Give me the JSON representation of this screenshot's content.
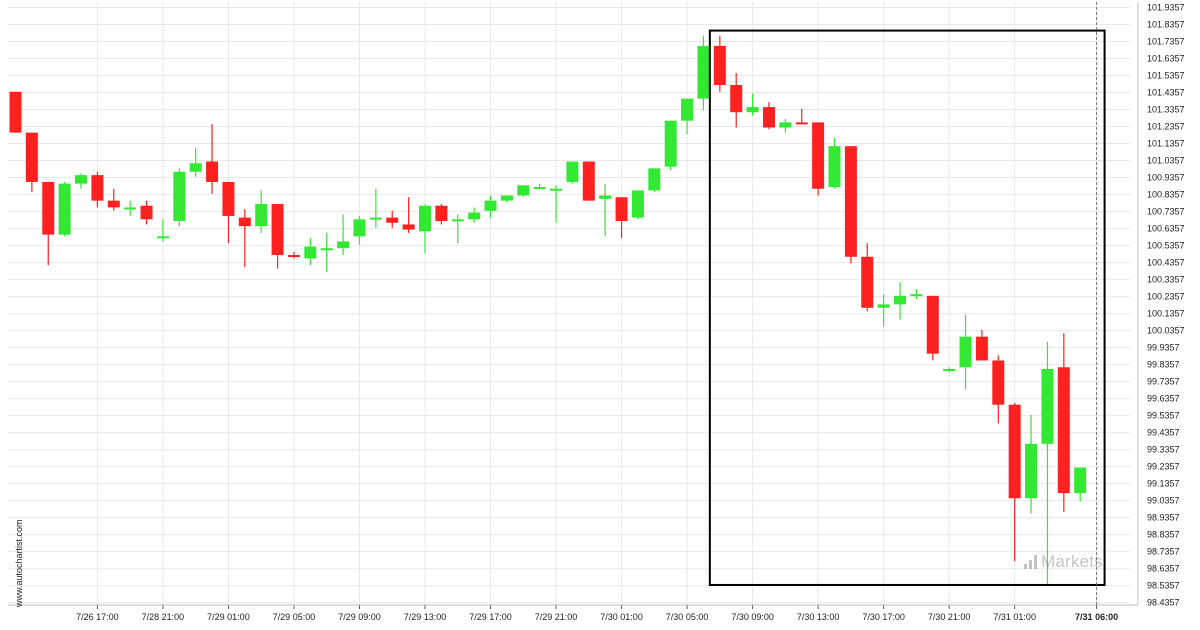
{
  "watermark": {
    "text": "www.autochartist.com"
  },
  "brand": {
    "text": "Markets",
    "icon": "bar-chart-icon"
  },
  "colors": {
    "up": "#33e833",
    "down": "#ff2020",
    "grid": "#e8e8e8",
    "axis": "#222222",
    "box": "#000000"
  },
  "chart_data": {
    "type": "candlestick",
    "title": "",
    "xlabel": "",
    "ylabel": "",
    "ylim": [
      98.41,
      101.96
    ],
    "grid": true,
    "y_ticks": [
      "101.9357",
      "101.8357",
      "101.7357",
      "101.6357",
      "101.5357",
      "101.4357",
      "101.3357",
      "101.2357",
      "101.1357",
      "101.0357",
      "100.9357",
      "100.8357",
      "100.7357",
      "100.6357",
      "100.5357",
      "100.4357",
      "100.3357",
      "100.2357",
      "100.1357",
      "100.0357",
      "99.9357",
      "99.8357",
      "99.7357",
      "99.6357",
      "99.5357",
      "99.4357",
      "99.3357",
      "99.2357",
      "99.1357",
      "99.0357",
      "98.9357",
      "98.8357",
      "98.7357",
      "98.6357",
      "98.5357",
      "98.4357"
    ],
    "x_ticks": [
      {
        "label": "7/26 17:00",
        "index": 5,
        "bold": false
      },
      {
        "label": "7/28 21:00",
        "index": 9,
        "bold": false
      },
      {
        "label": "7/29 01:00",
        "index": 13,
        "bold": false
      },
      {
        "label": "7/29 05:00",
        "index": 17,
        "bold": false
      },
      {
        "label": "7/29 09:00",
        "index": 21,
        "bold": false
      },
      {
        "label": "7/29 13:00",
        "index": 25,
        "bold": false
      },
      {
        "label": "7/29 17:00",
        "index": 29,
        "bold": false
      },
      {
        "label": "7/29 21:00",
        "index": 33,
        "bold": false
      },
      {
        "label": "7/30 01:00",
        "index": 37,
        "bold": false
      },
      {
        "label": "7/30 05:00",
        "index": 41,
        "bold": false
      },
      {
        "label": "7/30 09:00",
        "index": 45,
        "bold": false
      },
      {
        "label": "7/30 13:00",
        "index": 49,
        "bold": false
      },
      {
        "label": "7/30 17:00",
        "index": 53,
        "bold": false
      },
      {
        "label": "7/30 21:00",
        "index": 57,
        "bold": false
      },
      {
        "label": "7/31 01:00",
        "index": 61,
        "bold": false
      },
      {
        "label": "7/31 06:00",
        "index": 66,
        "bold": true
      }
    ],
    "candles": [
      {
        "o": 101.44,
        "h": 101.44,
        "l": 101.2,
        "c": 101.2
      },
      {
        "o": 101.2,
        "h": 101.2,
        "l": 100.85,
        "c": 100.91
      },
      {
        "o": 100.91,
        "h": 100.91,
        "l": 100.42,
        "c": 100.6
      },
      {
        "o": 100.6,
        "h": 100.91,
        "l": 100.59,
        "c": 100.9
      },
      {
        "o": 100.9,
        "h": 100.96,
        "l": 100.87,
        "c": 100.95
      },
      {
        "o": 100.95,
        "h": 100.97,
        "l": 100.76,
        "c": 100.8
      },
      {
        "o": 100.8,
        "h": 100.87,
        "l": 100.74,
        "c": 100.76
      },
      {
        "o": 100.76,
        "h": 100.8,
        "l": 100.71,
        "c": 100.76
      },
      {
        "o": 100.77,
        "h": 100.8,
        "l": 100.66,
        "c": 100.69
      },
      {
        "o": 100.59,
        "h": 100.69,
        "l": 100.56,
        "c": 100.59
      },
      {
        "o": 100.68,
        "h": 100.99,
        "l": 100.65,
        "c": 100.97
      },
      {
        "o": 100.97,
        "h": 101.11,
        "l": 100.94,
        "c": 101.02
      },
      {
        "o": 101.03,
        "h": 101.25,
        "l": 100.84,
        "c": 100.91
      },
      {
        "o": 100.91,
        "h": 100.91,
        "l": 100.55,
        "c": 100.71
      },
      {
        "o": 100.7,
        "h": 100.75,
        "l": 100.41,
        "c": 100.65
      },
      {
        "o": 100.65,
        "h": 100.86,
        "l": 100.61,
        "c": 100.78
      },
      {
        "o": 100.78,
        "h": 100.78,
        "l": 100.4,
        "c": 100.48
      },
      {
        "o": 100.48,
        "h": 100.5,
        "l": 100.46,
        "c": 100.47
      },
      {
        "o": 100.46,
        "h": 100.58,
        "l": 100.42,
        "c": 100.53
      },
      {
        "o": 100.52,
        "h": 100.61,
        "l": 100.38,
        "c": 100.52
      },
      {
        "o": 100.52,
        "h": 100.72,
        "l": 100.48,
        "c": 100.56
      },
      {
        "o": 100.59,
        "h": 100.71,
        "l": 100.54,
        "c": 100.69
      },
      {
        "o": 100.69,
        "h": 100.87,
        "l": 100.64,
        "c": 100.7
      },
      {
        "o": 100.7,
        "h": 100.74,
        "l": 100.64,
        "c": 100.67
      },
      {
        "o": 100.66,
        "h": 100.82,
        "l": 100.61,
        "c": 100.63
      },
      {
        "o": 100.62,
        "h": 100.78,
        "l": 100.49,
        "c": 100.77
      },
      {
        "o": 100.77,
        "h": 100.78,
        "l": 100.66,
        "c": 100.68
      },
      {
        "o": 100.68,
        "h": 100.72,
        "l": 100.55,
        "c": 100.69
      },
      {
        "o": 100.69,
        "h": 100.76,
        "l": 100.67,
        "c": 100.73
      },
      {
        "o": 100.74,
        "h": 100.83,
        "l": 100.7,
        "c": 100.8
      },
      {
        "o": 100.8,
        "h": 100.83,
        "l": 100.79,
        "c": 100.83
      },
      {
        "o": 100.83,
        "h": 100.89,
        "l": 100.82,
        "c": 100.89
      },
      {
        "o": 100.87,
        "h": 100.9,
        "l": 100.87,
        "c": 100.88
      },
      {
        "o": 100.87,
        "h": 100.89,
        "l": 100.67,
        "c": 100.87
      },
      {
        "o": 100.91,
        "h": 101.03,
        "l": 100.9,
        "c": 101.03
      },
      {
        "o": 101.03,
        "h": 101.03,
        "l": 100.8,
        "c": 100.8
      },
      {
        "o": 100.81,
        "h": 100.9,
        "l": 100.59,
        "c": 100.83
      },
      {
        "o": 100.82,
        "h": 100.82,
        "l": 100.58,
        "c": 100.68
      },
      {
        "o": 100.7,
        "h": 100.86,
        "l": 100.69,
        "c": 100.86
      },
      {
        "o": 100.86,
        "h": 100.99,
        "l": 100.85,
        "c": 100.99
      },
      {
        "o": 101.0,
        "h": 101.27,
        "l": 100.98,
        "c": 101.27
      },
      {
        "o": 101.27,
        "h": 101.4,
        "l": 101.19,
        "c": 101.4
      },
      {
        "o": 101.4,
        "h": 101.77,
        "l": 101.33,
        "c": 101.71
      },
      {
        "o": 101.71,
        "h": 101.77,
        "l": 101.44,
        "c": 101.48
      },
      {
        "o": 101.48,
        "h": 101.55,
        "l": 101.23,
        "c": 101.32
      },
      {
        "o": 101.32,
        "h": 101.43,
        "l": 101.3,
        "c": 101.35
      },
      {
        "o": 101.35,
        "h": 101.38,
        "l": 101.22,
        "c": 101.23
      },
      {
        "o": 101.23,
        "h": 101.28,
        "l": 101.2,
        "c": 101.26
      },
      {
        "o": 101.26,
        "h": 101.34,
        "l": 101.25,
        "c": 101.25
      },
      {
        "o": 101.26,
        "h": 101.26,
        "l": 100.83,
        "c": 100.87
      },
      {
        "o": 100.88,
        "h": 101.17,
        "l": 100.87,
        "c": 101.12
      },
      {
        "o": 101.12,
        "h": 101.12,
        "l": 100.43,
        "c": 100.47
      },
      {
        "o": 100.47,
        "h": 100.55,
        "l": 100.15,
        "c": 100.17
      },
      {
        "o": 100.17,
        "h": 100.25,
        "l": 100.06,
        "c": 100.19
      },
      {
        "o": 100.19,
        "h": 100.32,
        "l": 100.1,
        "c": 100.24
      },
      {
        "o": 100.24,
        "h": 100.28,
        "l": 100.22,
        "c": 100.25
      },
      {
        "o": 100.24,
        "h": 100.24,
        "l": 99.86,
        "c": 99.9
      },
      {
        "o": 99.8,
        "h": 99.82,
        "l": 99.79,
        "c": 99.81
      },
      {
        "o": 99.82,
        "h": 100.13,
        "l": 99.69,
        "c": 100.0
      },
      {
        "o": 100.0,
        "h": 100.04,
        "l": 99.86,
        "c": 99.86
      },
      {
        "o": 99.86,
        "h": 99.89,
        "l": 99.49,
        "c": 99.6
      },
      {
        "o": 99.6,
        "h": 99.61,
        "l": 98.68,
        "c": 99.05
      },
      {
        "o": 99.05,
        "h": 99.54,
        "l": 98.96,
        "c": 99.37
      },
      {
        "o": 99.37,
        "h": 99.97,
        "l": 98.54,
        "c": 99.81
      },
      {
        "o": 99.82,
        "h": 100.02,
        "l": 98.97,
        "c": 99.08
      },
      {
        "o": 99.08,
        "h": 99.23,
        "l": 99.03,
        "c": 99.23
      }
    ],
    "highlight_box": {
      "from_index": 43,
      "to_index": 66,
      "low": 98.54,
      "high": 101.8
    }
  }
}
